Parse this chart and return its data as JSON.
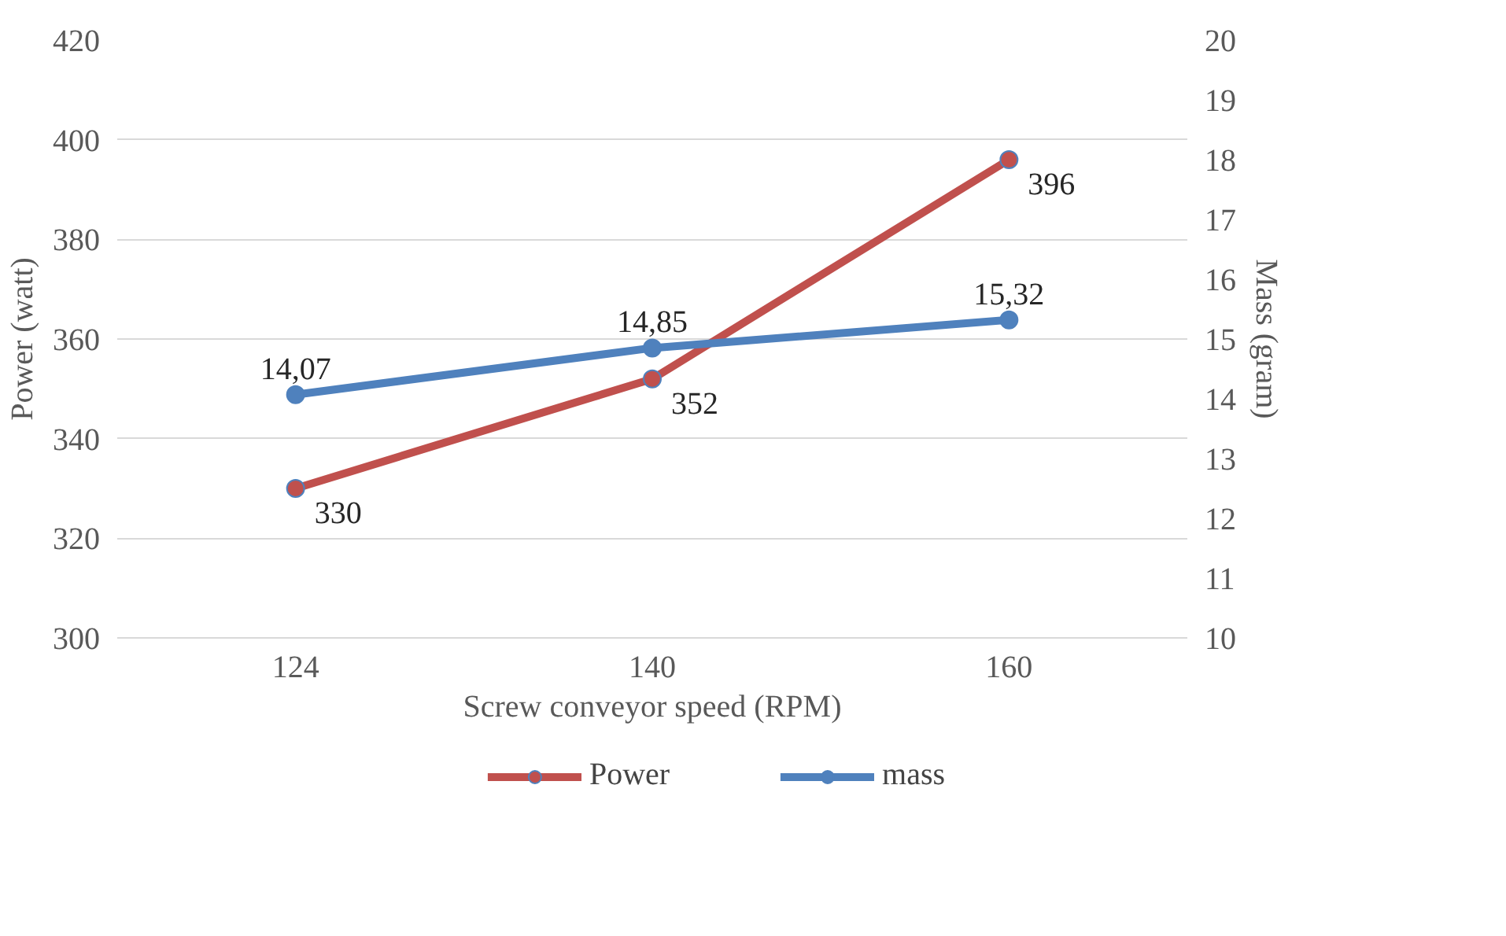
{
  "chart_data": {
    "type": "line",
    "xlabel": "Screw conveyor speed (RPM)",
    "ylabel": "Power (watt)",
    "y2label": "Mass (gram)",
    "categories": [
      "124",
      "140",
      "160"
    ],
    "series": [
      {
        "name": "Power",
        "color": "#c0504d",
        "values": [
          330,
          352,
          396
        ],
        "value_labels": [
          "330",
          "352",
          "396"
        ]
      },
      {
        "name": "mass",
        "color": "#4f81bd",
        "values": [
          14.07,
          14.85,
          15.32
        ],
        "value_labels": [
          "14,07",
          "14,85",
          "15,32"
        ],
        "axis": "y2"
      }
    ],
    "ylim": [
      300,
      420
    ],
    "yticks": [
      300,
      320,
      340,
      360,
      380,
      400,
      420
    ],
    "y2lim": [
      10,
      20
    ],
    "y2ticks": [
      10,
      11,
      12,
      13,
      14,
      15,
      16,
      17,
      18,
      19,
      20
    ],
    "grid": "y",
    "legend": "bottom",
    "marker": "circle",
    "line_style": "solid"
  }
}
